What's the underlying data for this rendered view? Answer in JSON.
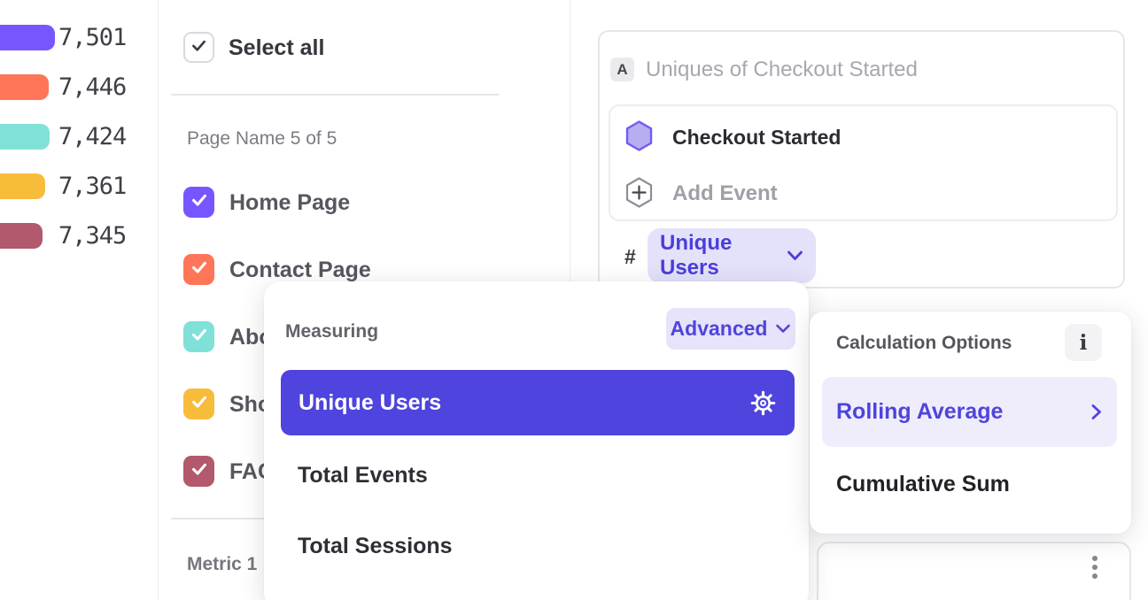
{
  "colors": {
    "accent_purple": "#4F44DD",
    "accent_purple_light": "#E4E1FA",
    "series": [
      "#7856FF",
      "#FF7557",
      "#80E1D9",
      "#F8BC3B",
      "#B2596E"
    ]
  },
  "legend": {
    "items": [
      {
        "value": "7,501",
        "color": "#7856FF"
      },
      {
        "value": "7,446",
        "color": "#FF7557"
      },
      {
        "value": "7,424",
        "color": "#80E1D9"
      },
      {
        "value": "7,361",
        "color": "#F8BC3B"
      },
      {
        "value": "7,345",
        "color": "#B2596E"
      }
    ]
  },
  "panel": {
    "select_all": "Select all",
    "group_label": "Page Name 5 of 5",
    "items": [
      {
        "label": "Home Page",
        "color": "#7856FF",
        "checked": true
      },
      {
        "label": "Contact Page",
        "color": "#FF7557",
        "checked": true
      },
      {
        "label": "Abo",
        "color": "#80E1D9",
        "checked": true
      },
      {
        "label": "Sho",
        "color": "#F8BC3B",
        "checked": true
      },
      {
        "label": "FAC",
        "color": "#B2596E",
        "checked": true
      }
    ],
    "footer_label": "Metric 1"
  },
  "query": {
    "badge": "A",
    "placeholder": "Uniques of Checkout Started",
    "event_name": "Checkout Started",
    "add_event": "Add Event",
    "metric_prefix": "#",
    "metric_value": "Unique Users"
  },
  "measuring": {
    "title": "Measuring",
    "mode": "Advanced",
    "options": [
      {
        "label": "Unique Users",
        "selected": true
      },
      {
        "label": "Total Events",
        "selected": false
      },
      {
        "label": "Total Sessions",
        "selected": false
      }
    ]
  },
  "calc": {
    "title": "Calculation Options",
    "info": "i",
    "options": [
      {
        "label": "Rolling Average",
        "selected": true,
        "has_submenu": true
      },
      {
        "label": "Cumulative Sum",
        "selected": false,
        "has_submenu": false
      }
    ]
  }
}
